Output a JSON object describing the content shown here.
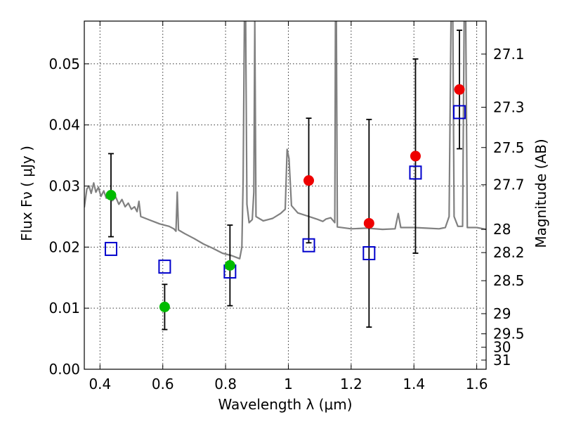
{
  "chart_data": {
    "type": "scatter",
    "xlabel": "Wavelength  λ (μm)",
    "ylabel": "Flux  Fν  ( μJy )",
    "y2label": "Magnitude (AB)",
    "xlim": [
      0.35,
      1.63
    ],
    "ylim": [
      0.0,
      0.057
    ],
    "grid": true,
    "x_ticks": [
      0.4,
      0.6,
      0.8,
      1.0,
      1.2,
      1.4,
      1.6
    ],
    "x_tick_labels": [
      "0.4",
      "0.6",
      "0.8",
      "1",
      "1.2",
      "1.4",
      "1.6"
    ],
    "y_ticks": [
      0.0,
      0.01,
      0.02,
      0.03,
      0.04,
      0.05
    ],
    "y_tick_labels": [
      "0.00",
      "0.01",
      "0.02",
      "0.03",
      "0.04",
      "0.05"
    ],
    "y2_ticks": [
      {
        "label": "27.1",
        "flux": 0.0516
      },
      {
        "label": "27.3",
        "flux": 0.0429
      },
      {
        "label": "27.5",
        "flux": 0.0363
      },
      {
        "label": "27.7",
        "flux": 0.0302
      },
      {
        "label": "28",
        "flux": 0.0229
      },
      {
        "label": "28.2",
        "flux": 0.0191
      },
      {
        "label": "28.5",
        "flux": 0.0145
      },
      {
        "label": "29",
        "flux": 0.0091
      },
      {
        "label": "29.5",
        "flux": 0.0058
      },
      {
        "label": "30",
        "flux": 0.0036
      },
      {
        "label": "31",
        "flux": 0.0015
      }
    ],
    "series": [
      {
        "marker": "circle-filled",
        "color": "#00bb00",
        "points": [
          {
            "x": 0.435,
            "y": 0.0285,
            "err": 0.0068
          },
          {
            "x": 0.606,
            "y": 0.0102,
            "err": 0.0037
          },
          {
            "x": 0.814,
            "y": 0.017,
            "err": 0.0066
          }
        ]
      },
      {
        "marker": "circle-filled",
        "color": "#ee0000",
        "points": [
          {
            "x": 1.065,
            "y": 0.0309,
            "err": 0.0102
          },
          {
            "x": 1.257,
            "y": 0.0239,
            "err": 0.017
          },
          {
            "x": 1.405,
            "y": 0.0349,
            "err": 0.0159
          },
          {
            "x": 1.545,
            "y": 0.0458,
            "err": 0.0097
          }
        ]
      },
      {
        "marker": "square-open",
        "color": "#0000cc",
        "points": [
          {
            "x": 0.435,
            "y": 0.0197
          },
          {
            "x": 0.606,
            "y": 0.0168
          },
          {
            "x": 0.814,
            "y": 0.016
          },
          {
            "x": 1.065,
            "y": 0.0203
          },
          {
            "x": 1.257,
            "y": 0.019
          },
          {
            "x": 1.405,
            "y": 0.0322
          },
          {
            "x": 1.545,
            "y": 0.0421
          }
        ]
      }
    ],
    "model_spectrum": {
      "color": "#808080",
      "points": [
        [
          0.35,
          0.0265
        ],
        [
          0.358,
          0.0295
        ],
        [
          0.365,
          0.03
        ],
        [
          0.372,
          0.0288
        ],
        [
          0.38,
          0.0305
        ],
        [
          0.387,
          0.029
        ],
        [
          0.395,
          0.0298
        ],
        [
          0.403,
          0.0283
        ],
        [
          0.412,
          0.0292
        ],
        [
          0.42,
          0.028
        ],
        [
          0.43,
          0.0288
        ],
        [
          0.44,
          0.0276
        ],
        [
          0.45,
          0.0282
        ],
        [
          0.46,
          0.027
        ],
        [
          0.47,
          0.0278
        ],
        [
          0.48,
          0.0266
        ],
        [
          0.49,
          0.0272
        ],
        [
          0.5,
          0.0262
        ],
        [
          0.51,
          0.0266
        ],
        [
          0.518,
          0.0258
        ],
        [
          0.524,
          0.0275
        ],
        [
          0.53,
          0.025
        ],
        [
          0.545,
          0.0247
        ],
        [
          0.56,
          0.0244
        ],
        [
          0.575,
          0.0241
        ],
        [
          0.59,
          0.0238
        ],
        [
          0.605,
          0.0236
        ],
        [
          0.62,
          0.0234
        ],
        [
          0.635,
          0.023
        ],
        [
          0.642,
          0.0226
        ],
        [
          0.646,
          0.029
        ],
        [
          0.65,
          0.0228
        ],
        [
          0.67,
          0.0222
        ],
        [
          0.7,
          0.0214
        ],
        [
          0.73,
          0.0205
        ],
        [
          0.76,
          0.0198
        ],
        [
          0.79,
          0.019
        ],
        [
          0.82,
          0.0186
        ],
        [
          0.845,
          0.0181
        ],
        [
          0.852,
          0.02
        ],
        [
          0.856,
          0.031
        ],
        [
          0.86,
          0.057
        ],
        [
          0.864,
          0.057
        ],
        [
          0.868,
          0.027
        ],
        [
          0.875,
          0.024
        ],
        [
          0.885,
          0.0245
        ],
        [
          0.89,
          0.029
        ],
        [
          0.893,
          0.057
        ],
        [
          0.897,
          0.025
        ],
        [
          0.92,
          0.0243
        ],
        [
          0.95,
          0.0247
        ],
        [
          0.975,
          0.0255
        ],
        [
          0.99,
          0.0262
        ],
        [
          0.996,
          0.036
        ],
        [
          1.002,
          0.0345
        ],
        [
          1.01,
          0.0268
        ],
        [
          1.03,
          0.0256
        ],
        [
          1.06,
          0.0251
        ],
        [
          1.09,
          0.0246
        ],
        [
          1.11,
          0.0242
        ],
        [
          1.12,
          0.0246
        ],
        [
          1.135,
          0.0248
        ],
        [
          1.148,
          0.024
        ],
        [
          1.15,
          0.057
        ],
        [
          1.153,
          0.057
        ],
        [
          1.156,
          0.0233
        ],
        [
          1.2,
          0.023
        ],
        [
          1.25,
          0.0231
        ],
        [
          1.3,
          0.0229
        ],
        [
          1.34,
          0.023
        ],
        [
          1.35,
          0.0255
        ],
        [
          1.358,
          0.0232
        ],
        [
          1.4,
          0.0232
        ],
        [
          1.44,
          0.0231
        ],
        [
          1.48,
          0.023
        ],
        [
          1.5,
          0.0232
        ],
        [
          1.512,
          0.025
        ],
        [
          1.518,
          0.057
        ],
        [
          1.524,
          0.057
        ],
        [
          1.528,
          0.025
        ],
        [
          1.54,
          0.0234
        ],
        [
          1.555,
          0.0234
        ],
        [
          1.56,
          0.057
        ],
        [
          1.565,
          0.057
        ],
        [
          1.57,
          0.0232
        ],
        [
          1.6,
          0.0232
        ],
        [
          1.63,
          0.0229
        ]
      ]
    }
  }
}
